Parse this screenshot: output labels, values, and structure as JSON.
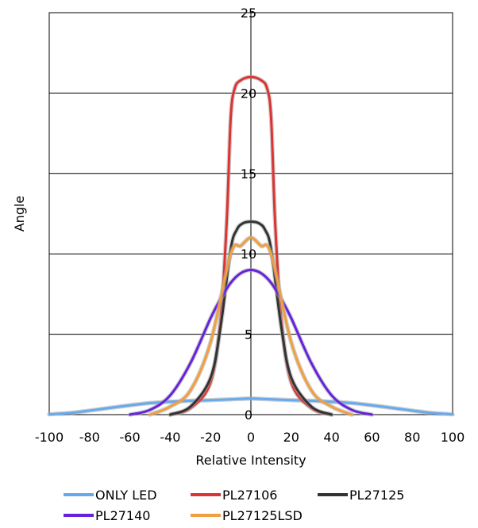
{
  "chart_data": {
    "type": "line",
    "title": "",
    "xlabel": "Relative Intensity",
    "ylabel": "Angle",
    "xlim": [
      -100,
      100
    ],
    "ylim": [
      0,
      25
    ],
    "xticks": [
      -100,
      -80,
      -60,
      -40,
      -20,
      0,
      20,
      40,
      60,
      80,
      100
    ],
    "yticks": [
      0,
      5,
      10,
      15,
      20,
      25
    ],
    "grid": "horizontal major gridlines, central vertical axis at x=0",
    "legend_position": "bottom",
    "series": [
      {
        "name": "ONLY LED",
        "color": "#66aaee",
        "x": [
          -100,
          -90,
          -80,
          -70,
          -60,
          -50,
          -40,
          -30,
          -20,
          -10,
          0,
          10,
          20,
          30,
          40,
          50,
          60,
          70,
          80,
          90,
          100
        ],
        "y": [
          0.02,
          0.1,
          0.25,
          0.42,
          0.58,
          0.72,
          0.8,
          0.86,
          0.9,
          0.95,
          1.0,
          0.95,
          0.9,
          0.86,
          0.8,
          0.72,
          0.58,
          0.42,
          0.25,
          0.1,
          0.02
        ]
      },
      {
        "name": "PL27106",
        "color": "#dd3333",
        "x": [
          -40,
          -30,
          -20,
          -15,
          -12,
          -10,
          -8,
          -5,
          0,
          5,
          8,
          10,
          12,
          15,
          20,
          30,
          40
        ],
        "y": [
          0.0,
          0.4,
          2.0,
          6.0,
          12.0,
          18.5,
          20.3,
          20.8,
          21.0,
          20.8,
          20.3,
          18.5,
          12.0,
          6.0,
          2.0,
          0.4,
          0.0
        ]
      },
      {
        "name": "PL27125",
        "color": "#333333",
        "x": [
          -40,
          -30,
          -20,
          -15,
          -10,
          -7,
          -4,
          0,
          4,
          7,
          10,
          15,
          20,
          30,
          40
        ],
        "y": [
          0.0,
          0.5,
          2.3,
          5.5,
          10.3,
          11.5,
          11.9,
          12.0,
          11.9,
          11.5,
          10.3,
          5.5,
          2.3,
          0.5,
          0.0
        ]
      },
      {
        "name": "PL27140",
        "color": "#6622dd",
        "x": [
          -60,
          -50,
          -40,
          -30,
          -20,
          -15,
          -10,
          -5,
          0,
          5,
          10,
          15,
          20,
          30,
          40,
          50,
          60
        ],
        "y": [
          0.0,
          0.3,
          1.2,
          3.2,
          6.0,
          7.2,
          8.2,
          8.8,
          9.0,
          8.8,
          8.2,
          7.2,
          6.0,
          3.2,
          1.2,
          0.3,
          0.0
        ]
      },
      {
        "name": "PL27125LSD",
        "color": "#f0a040",
        "x": [
          -50,
          -40,
          -30,
          -20,
          -10,
          -5,
          0,
          5,
          10,
          20,
          30,
          40,
          50
        ],
        "y": [
          0.0,
          0.5,
          1.5,
          4.5,
          10.0,
          10.5,
          11.0,
          10.5,
          10.0,
          4.5,
          1.5,
          0.5,
          0.0
        ]
      }
    ]
  }
}
